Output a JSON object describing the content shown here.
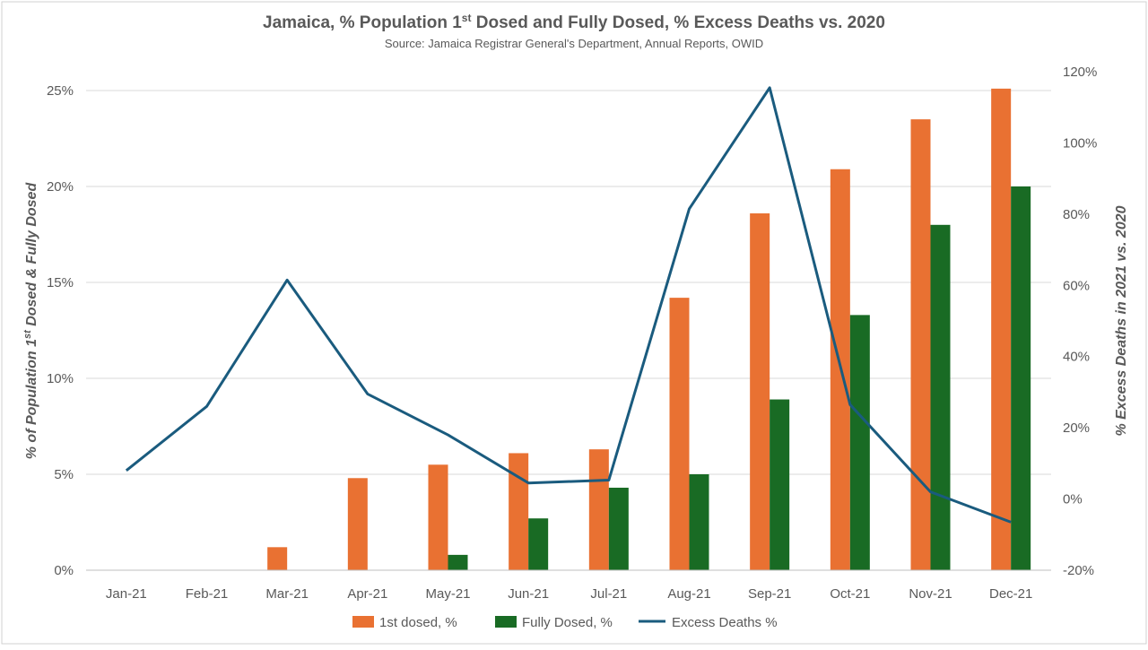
{
  "chart_data": {
    "type": "bar",
    "title_parts": {
      "before": "Jamaica, % Population 1",
      "sup": "st",
      "after": " Dosed and Fully Dosed, % Excess Deaths vs. 2020"
    },
    "subtitle": "Source: Jamaica Registrar General's Department, Annual Reports, OWID",
    "ylabel_parts": {
      "before": "% of Population 1",
      "sup": "st",
      "after": " Dosed & Fully Dosed"
    },
    "y2label": "% Excess Deaths in 2021 vs. 2020",
    "categories": [
      "Jan-21",
      "Feb-21",
      "Mar-21",
      "Apr-21",
      "May-21",
      "Jun-21",
      "Jul-21",
      "Aug-21",
      "Sep-21",
      "Oct-21",
      "Nov-21",
      "Dec-21"
    ],
    "ylim": [
      0,
      25
    ],
    "y_ticks": [
      0,
      5,
      10,
      15,
      20,
      25
    ],
    "y_tick_labels": [
      "0%",
      "5%",
      "10%",
      "15%",
      "20%",
      "25%"
    ],
    "y2lim": [
      -20,
      120
    ],
    "y2_ticks": [
      -20,
      0,
      20,
      40,
      60,
      80,
      100,
      120
    ],
    "y2_tick_labels": [
      "-20%",
      "0%",
      "20%",
      "40%",
      "60%",
      "80%",
      "100%",
      "120%"
    ],
    "series": [
      {
        "name": "1st dosed, %",
        "kind": "bar",
        "axis": "left",
        "color": "#E97132",
        "values": [
          null,
          null,
          1.2,
          4.8,
          5.5,
          6.1,
          6.3,
          14.2,
          18.6,
          20.9,
          23.5,
          25.1
        ]
      },
      {
        "name": "Fully Dosed, %",
        "kind": "bar",
        "axis": "left",
        "color": "#196B24",
        "values": [
          null,
          null,
          null,
          null,
          0.8,
          2.7,
          4.3,
          5.0,
          8.9,
          13.3,
          18.0,
          20.0
        ]
      },
      {
        "name": "Excess Deaths %",
        "kind": "line",
        "axis": "right",
        "color": "#1A5B7E",
        "values": [
          8,
          26,
          61.5,
          29.5,
          18,
          4.5,
          5.3,
          81.5,
          115.5,
          26.5,
          2,
          -6.5
        ]
      }
    ],
    "grid": true,
    "legend_position": "bottom"
  }
}
